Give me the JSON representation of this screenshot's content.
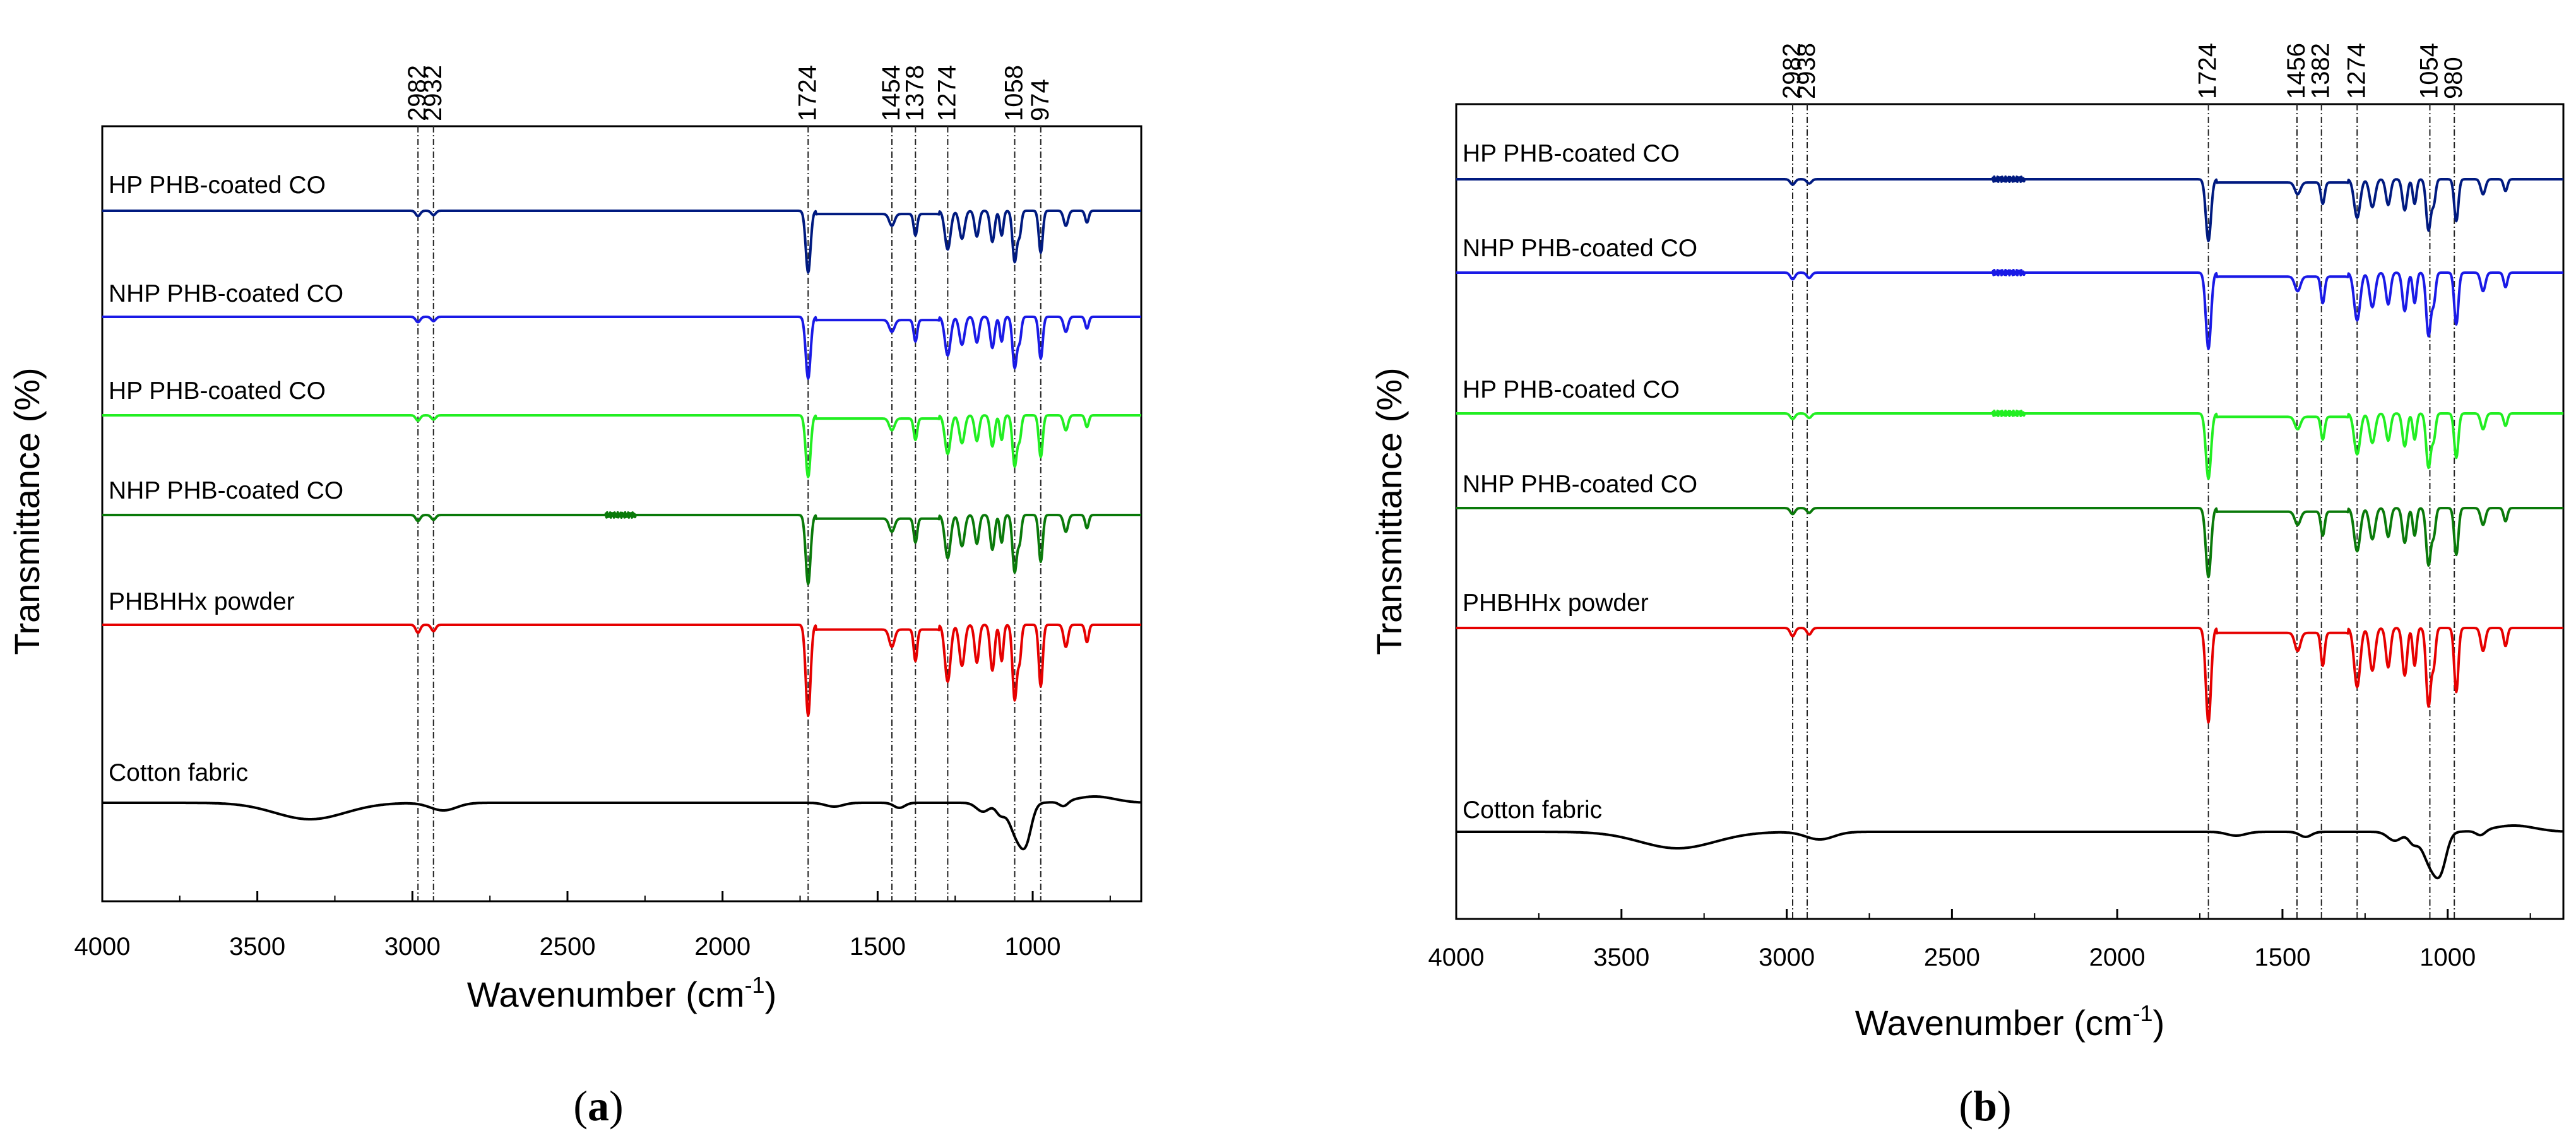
{
  "chart_data": [
    {
      "panel": "a",
      "type": "line",
      "caption_letter": "a",
      "xlabel": "Wavenumber (cm",
      "xlabel_sup": "-1",
      "xlabel_close": ")",
      "ylabel": "Transmittance (%)",
      "xlim": [
        4000,
        650
      ],
      "x_ticks": [
        4000,
        3500,
        3000,
        2500,
        2000,
        1500,
        1000
      ],
      "peaks": [
        2982,
        2932,
        1724,
        1454,
        1378,
        1274,
        1058,
        974
      ],
      "series": [
        {
          "name": "HP PHB-coated CO",
          "color": "#001a80",
          "kind": "phb",
          "amp": 0.85,
          "noise": 0
        },
        {
          "name": "NHP PHB-coated CO",
          "color": "#1a1ae6",
          "kind": "phb",
          "amp": 0.85,
          "noise": 0
        },
        {
          "name": "HP PHB-coated CO",
          "color": "#22ee22",
          "kind": "phb",
          "amp": 0.85,
          "noise": 0
        },
        {
          "name": "NHP PHB-coated CO",
          "color": "#0a7a0a",
          "kind": "phb",
          "amp": 0.95,
          "noise": 1
        },
        {
          "name": "PHBHHx powder",
          "color": "#e60000",
          "kind": "phb",
          "amp": 1.25,
          "noise": 0
        },
        {
          "name": "Cotton fabric",
          "color": "#000000",
          "kind": "cotton",
          "amp": 1.0,
          "noise": 0
        }
      ]
    },
    {
      "panel": "b",
      "type": "line",
      "caption_letter": "b",
      "xlabel": "Wavenumber (cm",
      "xlabel_sup": "-1",
      "xlabel_close": ")",
      "ylabel": "Transmittance (%)",
      "xlim": [
        4000,
        650
      ],
      "x_ticks": [
        4000,
        3500,
        3000,
        2500,
        2000,
        1500,
        1000
      ],
      "peaks": [
        2982,
        2938,
        1724,
        1456,
        1382,
        1274,
        1054,
        980
      ],
      "series": [
        {
          "name": "HP PHB-coated CO",
          "color": "#001a80",
          "kind": "phb",
          "amp": 0.85,
          "noise": 1
        },
        {
          "name": "NHP PHB-coated CO",
          "color": "#1a1ae6",
          "kind": "phb",
          "amp": 1.05,
          "noise": 1
        },
        {
          "name": "HP PHB-coated CO",
          "color": "#22ee22",
          "kind": "phb",
          "amp": 0.9,
          "noise": 1
        },
        {
          "name": "NHP PHB-coated CO",
          "color": "#0a7a0a",
          "kind": "phb",
          "amp": 0.95,
          "noise": 0
        },
        {
          "name": "PHBHHx powder",
          "color": "#e60000",
          "kind": "phb",
          "amp": 1.3,
          "noise": 0
        },
        {
          "name": "Cotton fabric",
          "color": "#000000",
          "kind": "cotton",
          "amp": 1.0,
          "noise": 0
        }
      ]
    }
  ]
}
